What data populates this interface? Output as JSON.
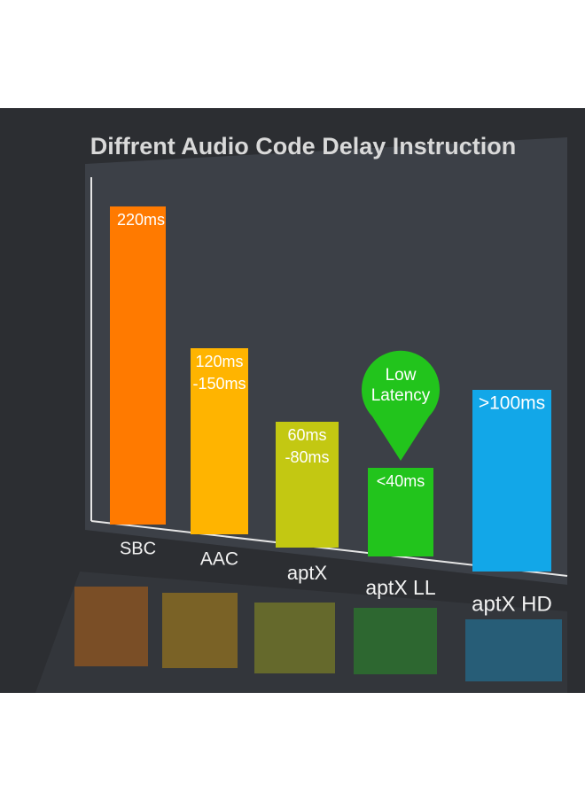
{
  "title": "Diffrent Audio Code Delay Instruction",
  "bars": [
    {
      "name": "SBC",
      "label": [
        "220ms"
      ],
      "color": "#ff7a00"
    },
    {
      "name": "AAC",
      "label": [
        "120ms",
        "-150ms"
      ],
      "color": "#ffb400"
    },
    {
      "name": "aptX",
      "label": [
        "60ms",
        "-80ms"
      ],
      "color": "#c3c812"
    },
    {
      "name": "aptX LL",
      "label": [
        "<40ms"
      ],
      "color": "#22c41c"
    },
    {
      "name": "aptX HD",
      "label": [
        ">100ms"
      ],
      "color": "#12a7e8"
    }
  ],
  "badge": [
    "Low",
    "Latency"
  ]
}
